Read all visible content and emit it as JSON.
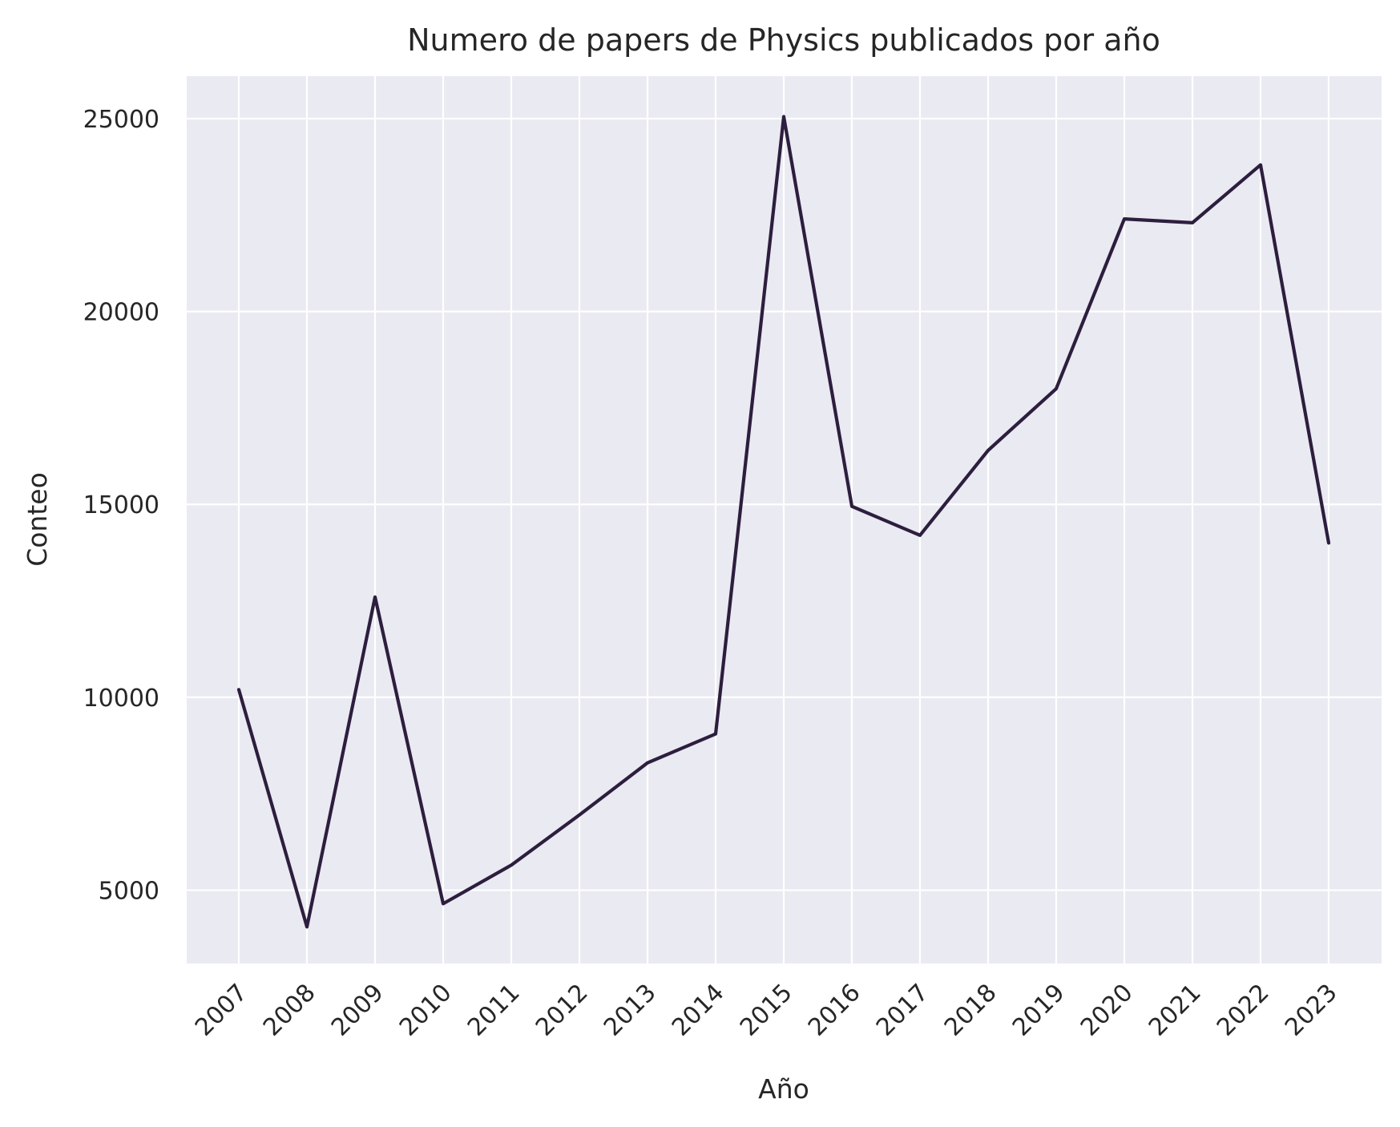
{
  "chart_data": {
    "type": "line",
    "title": "Numero de papers de Physics publicados por año",
    "xlabel": "Año",
    "ylabel": "Conteo",
    "x": [
      "2007",
      "2008",
      "2009",
      "2010",
      "2011",
      "2012",
      "2013",
      "2014",
      "2015",
      "2016",
      "2017",
      "2018",
      "2019",
      "2020",
      "2021",
      "2022",
      "2023"
    ],
    "series": [
      {
        "values": [
          10200,
          4050,
          12600,
          4650,
          5650,
          6950,
          8300,
          9050,
          25050,
          14950,
          14200,
          16400,
          18000,
          22400,
          22300,
          23800,
          14000
        ],
        "color": "#2d1e3e"
      }
    ],
    "y_ticks": [
      "5000",
      "10000",
      "15000",
      "20000",
      "25000"
    ],
    "ylim": [
      3100,
      26100
    ],
    "grid": true,
    "background_color": "#eaeaf2"
  }
}
